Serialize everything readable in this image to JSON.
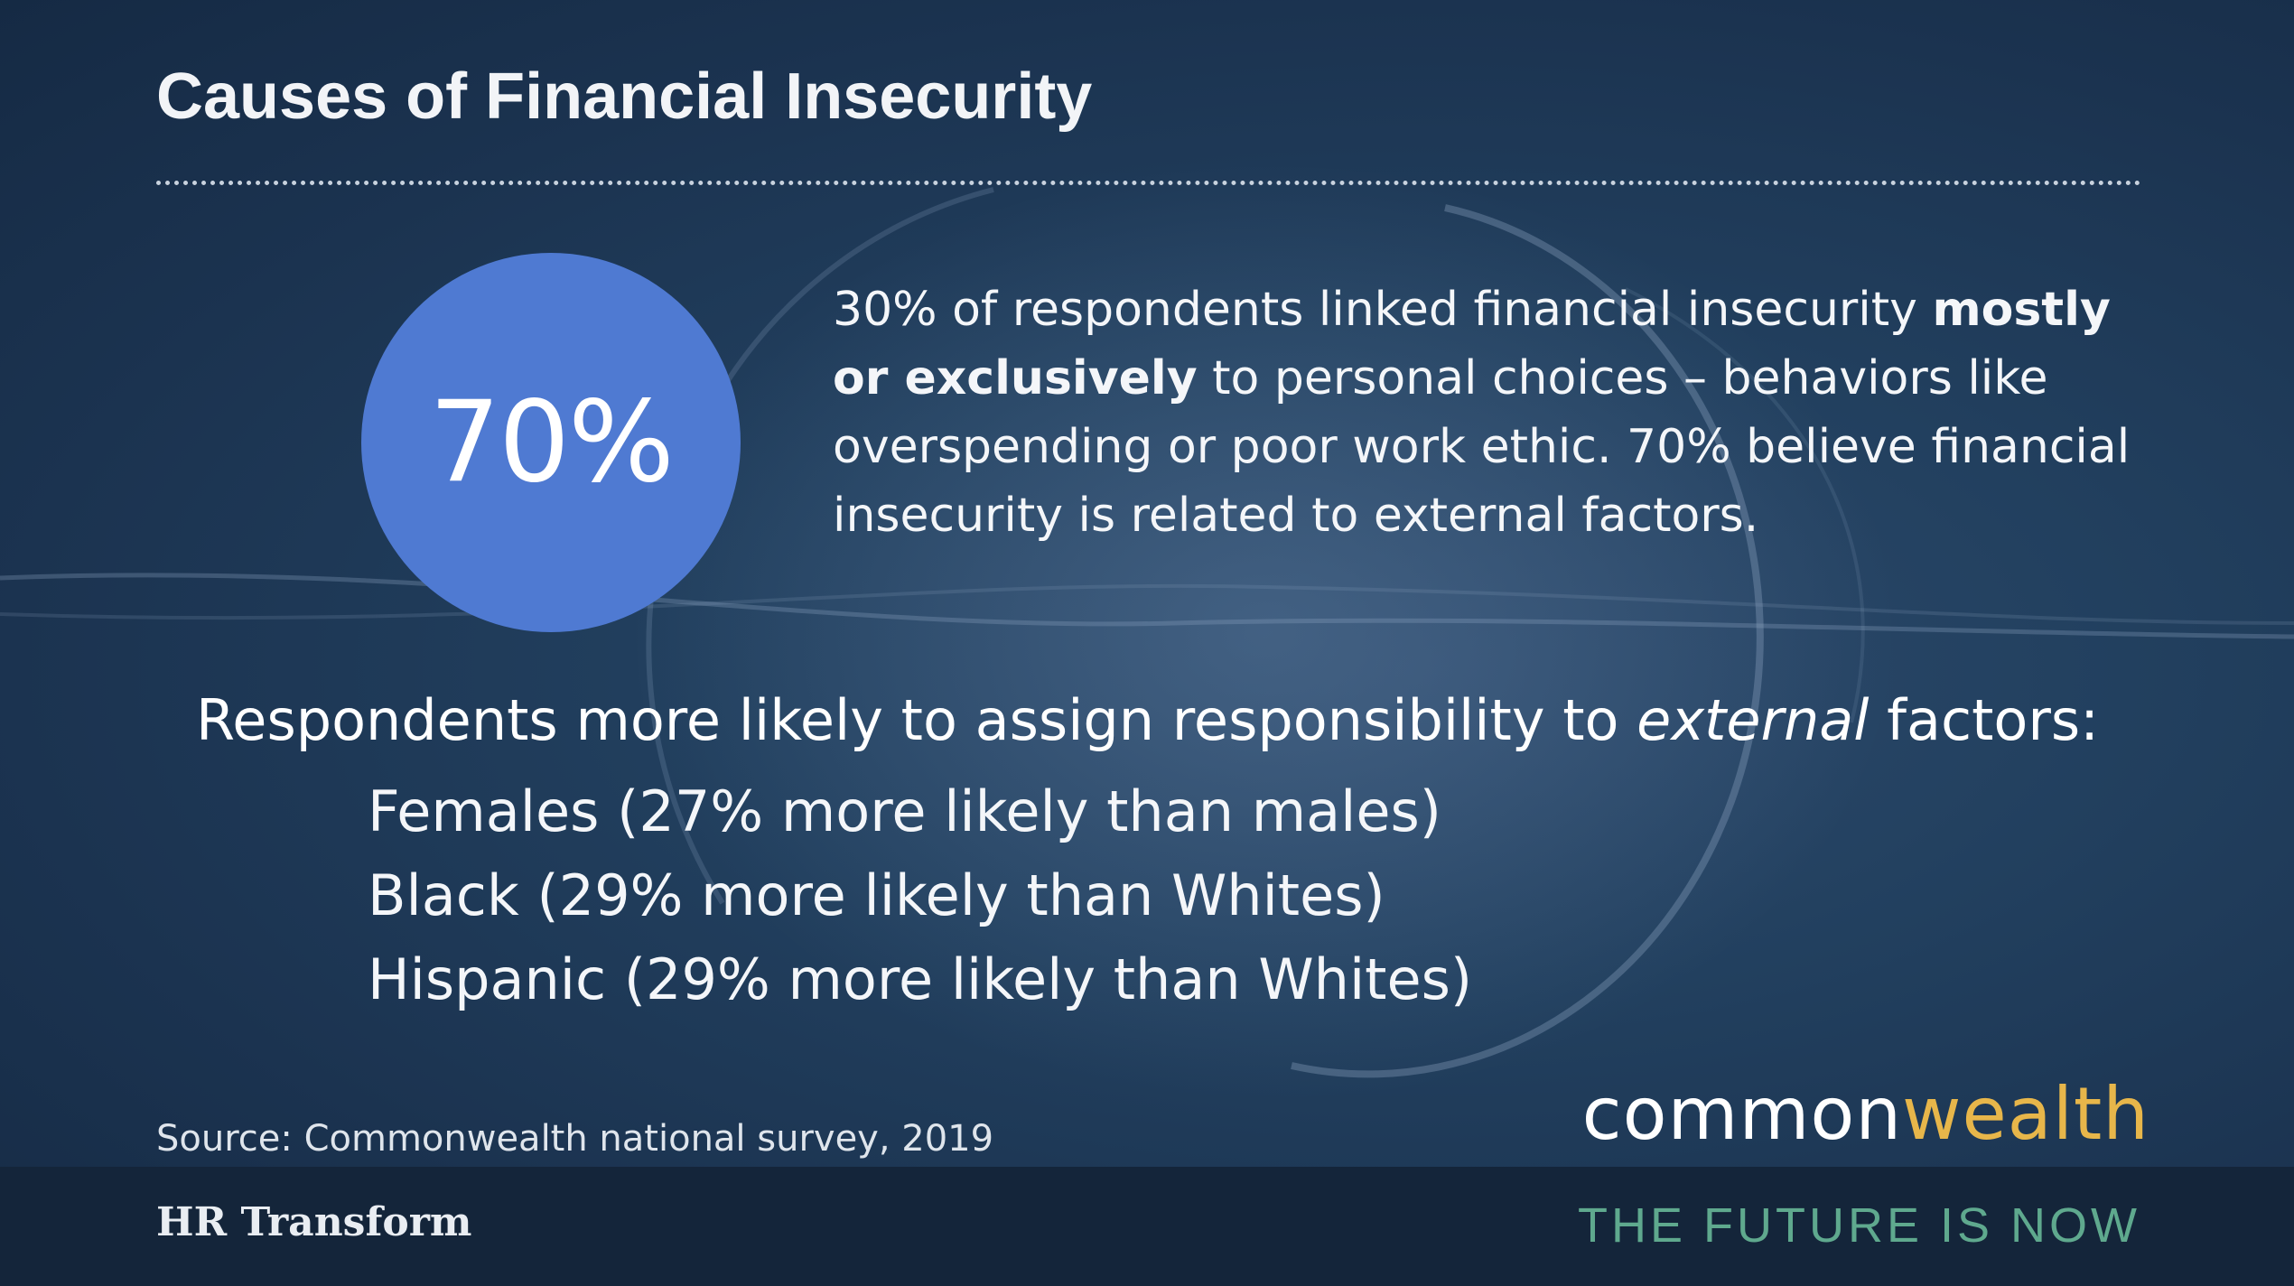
{
  "slide": {
    "title": "Causes of Financial Insecurity"
  },
  "stat": {
    "value": "70%",
    "description_part1": "30% of respondents linked financial insecurity ",
    "description_bold": "mostly or exclusively",
    "description_part2": " to personal choices – behaviors like overspending or poor work ethic.  70% believe financial insecurity is related to external factors."
  },
  "responsibility": {
    "heading_before": "Respondents more likely to assign responsibility to ",
    "heading_emphasis": "external",
    "heading_after": " factors:",
    "items": [
      "Females (27% more likely than males)",
      "Black (29% more likely than Whites)",
      "Hispanic (29% more likely than Whites)"
    ]
  },
  "source": "Source:  Commonwealth national survey, 2019",
  "logo": {
    "part1": "common",
    "part2": "wealth"
  },
  "footer": {
    "left": "HR Transform",
    "right": "THE FUTURE IS NOW"
  },
  "colors": {
    "background": "#1c3452",
    "circle": "#4f7ad2",
    "logo_accent": "#e7b64a",
    "tagline": "#5fa98e",
    "footer_bar": "#14253a"
  }
}
